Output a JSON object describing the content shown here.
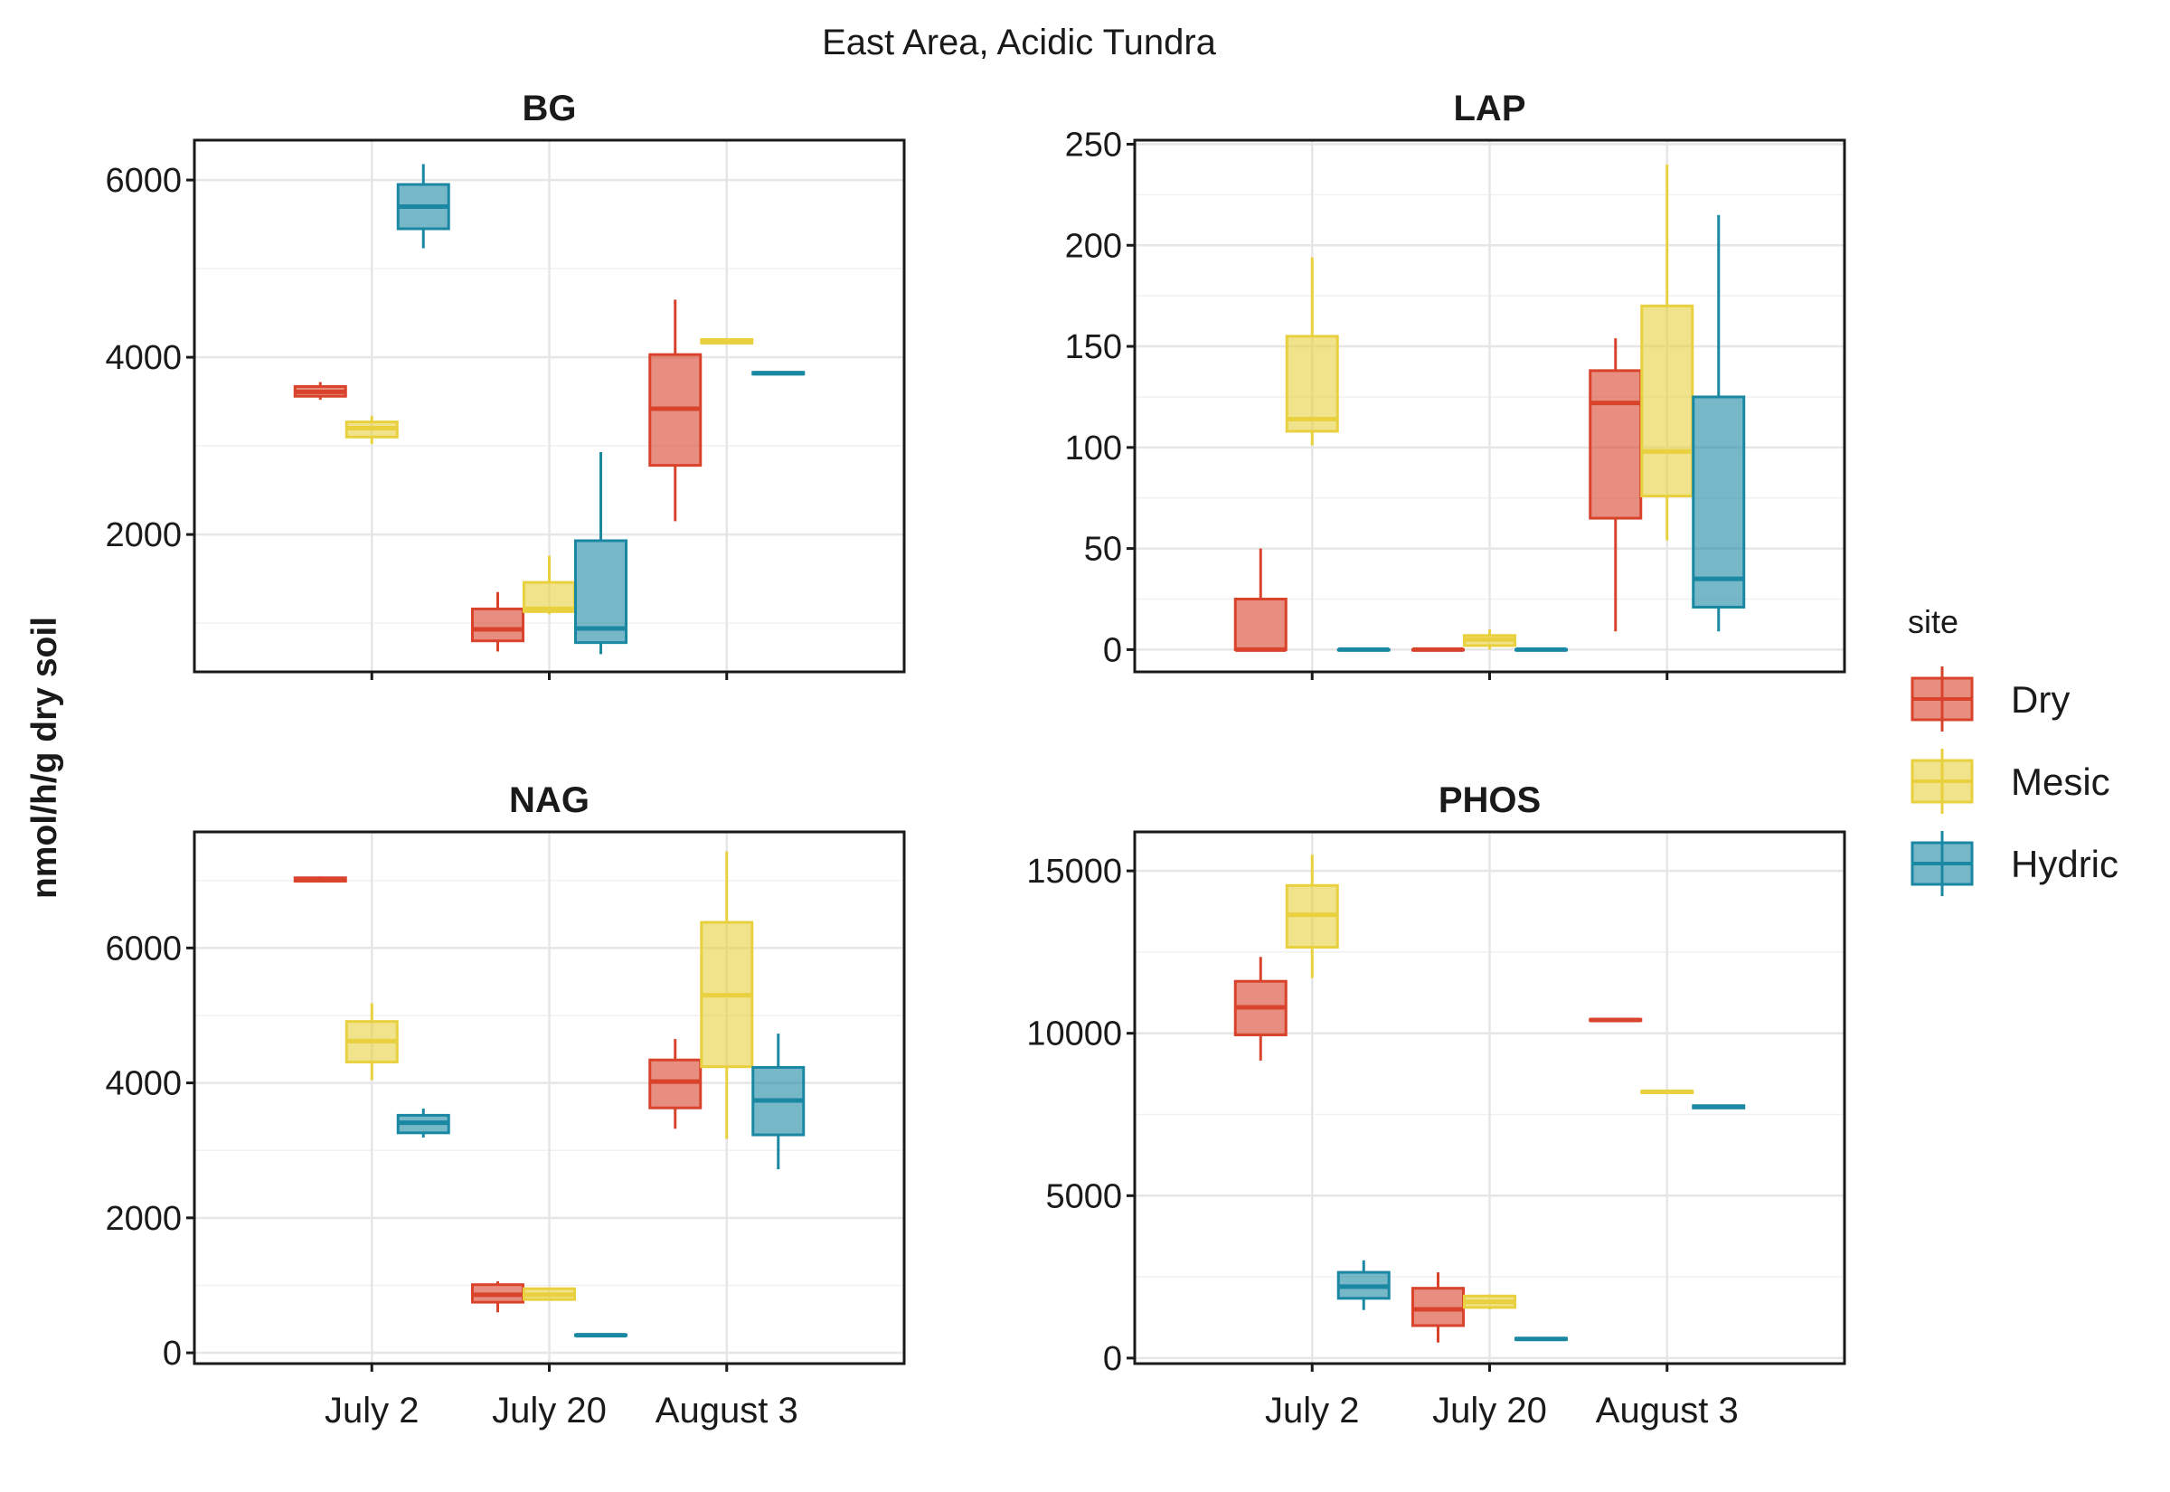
{
  "figure": {
    "suptitle": "East Area, Acidic Tundra",
    "ylabel": "nmol/h/g dry soil",
    "legend_title": "site"
  },
  "colors": {
    "Dry": "#d9432b",
    "Mesic": "#e8d03e",
    "Hydric": "#1a87a3"
  },
  "chart_data": [
    {
      "type": "box",
      "title": "BG",
      "categories": [
        "July 2",
        "July 20",
        "August 3"
      ],
      "ylim": [
        450,
        6450
      ],
      "yticks": [
        2000,
        4000,
        6000
      ],
      "tick_labels": [
        "2000",
        "4000",
        "6000"
      ],
      "show_x_labels": false,
      "series": [
        {
          "name": "Dry",
          "boxes": [
            {
              "min": 3520,
              "q1": 3560,
              "median": 3610,
              "q3": 3670,
              "max": 3720
            },
            {
              "min": 680,
              "q1": 800,
              "median": 930,
              "q3": 1160,
              "max": 1350
            },
            {
              "min": 2150,
              "q1": 2780,
              "median": 3420,
              "q3": 4030,
              "max": 4650
            }
          ]
        },
        {
          "name": "Mesic",
          "boxes": [
            {
              "min": 3020,
              "q1": 3100,
              "median": 3200,
              "q3": 3270,
              "max": 3340
            },
            {
              "min": 1100,
              "q1": 1130,
              "median": 1160,
              "q3": 1460,
              "max": 1760
            },
            {
              "min": 4150,
              "q1": 4160,
              "median": 4180,
              "q3": 4200,
              "max": 4210
            }
          ]
        },
        {
          "name": "Hydric",
          "boxes": [
            {
              "min": 5230,
              "q1": 5450,
              "median": 5700,
              "q3": 5950,
              "max": 6180
            },
            {
              "min": 650,
              "q1": 780,
              "median": 940,
              "q3": 1930,
              "max": 2930
            },
            {
              "min": 3800,
              "q1": 3810,
              "median": 3820,
              "q3": 3830,
              "max": 3840
            }
          ]
        }
      ]
    },
    {
      "type": "box",
      "title": "LAP",
      "categories": [
        "July 2",
        "July 20",
        "August 3"
      ],
      "ylim": [
        -11,
        252
      ],
      "yticks": [
        0,
        50,
        100,
        150,
        200,
        250
      ],
      "tick_labels": [
        "0",
        "50",
        "100",
        "150",
        "200",
        "250"
      ],
      "show_x_labels": false,
      "series": [
        {
          "name": "Dry",
          "boxes": [
            {
              "min": 0,
              "q1": 0,
              "median": 0,
              "q3": 25,
              "max": 50
            },
            {
              "min": 0,
              "q1": 0,
              "median": 0,
              "q3": 0,
              "max": 0
            },
            {
              "min": 9,
              "q1": 65,
              "median": 122,
              "q3": 138,
              "max": 154
            }
          ]
        },
        {
          "name": "Mesic",
          "boxes": [
            {
              "min": 101,
              "q1": 108,
              "median": 114,
              "q3": 155,
              "max": 194
            },
            {
              "min": 0,
              "q1": 2,
              "median": 5,
              "q3": 7,
              "max": 10
            },
            {
              "min": 54,
              "q1": 76,
              "median": 98,
              "q3": 170,
              "max": 240
            }
          ]
        },
        {
          "name": "Hydric",
          "boxes": [
            {
              "min": 0,
              "q1": 0,
              "median": 0,
              "q3": 0,
              "max": 0
            },
            {
              "min": 0,
              "q1": 0,
              "median": 0,
              "q3": 0,
              "max": 0
            },
            {
              "min": 9,
              "q1": 21,
              "median": 35,
              "q3": 125,
              "max": 215
            }
          ]
        }
      ]
    },
    {
      "type": "box",
      "title": "NAG",
      "categories": [
        "July 2",
        "July 20",
        "August 3"
      ],
      "ylim": [
        -160,
        7720
      ],
      "yticks": [
        0,
        2000,
        4000,
        6000
      ],
      "tick_labels": [
        "0",
        "2000",
        "4000",
        "6000"
      ],
      "show_x_labels": true,
      "series": [
        {
          "name": "Dry",
          "boxes": [
            {
              "min": 6980,
              "q1": 6990,
              "median": 7020,
              "q3": 7040,
              "max": 7060
            },
            {
              "min": 600,
              "q1": 750,
              "median": 860,
              "q3": 1010,
              "max": 1060
            },
            {
              "min": 3320,
              "q1": 3630,
              "median": 4020,
              "q3": 4340,
              "max": 4650
            }
          ]
        },
        {
          "name": "Mesic",
          "boxes": [
            {
              "min": 4040,
              "q1": 4310,
              "median": 4620,
              "q3": 4910,
              "max": 5180
            },
            {
              "min": 780,
              "q1": 790,
              "median": 860,
              "q3": 950,
              "max": 960
            },
            {
              "min": 3170,
              "q1": 4240,
              "median": 5300,
              "q3": 6380,
              "max": 7430
            }
          ]
        },
        {
          "name": "Hydric",
          "boxes": [
            {
              "min": 3190,
              "q1": 3260,
              "median": 3410,
              "q3": 3520,
              "max": 3620
            },
            {
              "min": 250,
              "q1": 255,
              "median": 260,
              "q3": 265,
              "max": 270
            },
            {
              "min": 2720,
              "q1": 3230,
              "median": 3740,
              "q3": 4230,
              "max": 4730
            }
          ]
        }
      ]
    },
    {
      "type": "box",
      "title": "PHOS",
      "categories": [
        "July 2",
        "July 20",
        "August 3"
      ],
      "ylim": [
        -170,
        16200
      ],
      "yticks": [
        0,
        5000,
        10000,
        15000
      ],
      "tick_labels": [
        "0",
        "5000",
        "10000",
        "15000"
      ],
      "show_x_labels": true,
      "series": [
        {
          "name": "Dry",
          "boxes": [
            {
              "min": 9160,
              "q1": 9950,
              "median": 10800,
              "q3": 11600,
              "max": 12350
            },
            {
              "min": 480,
              "q1": 1000,
              "median": 1500,
              "q3": 2150,
              "max": 2640
            },
            {
              "min": 10380,
              "q1": 10390,
              "median": 10410,
              "q3": 10430,
              "max": 10440
            }
          ]
        },
        {
          "name": "Mesic",
          "boxes": [
            {
              "min": 11700,
              "q1": 12650,
              "median": 13650,
              "q3": 14550,
              "max": 15500
            },
            {
              "min": 1500,
              "q1": 1560,
              "median": 1730,
              "q3": 1910,
              "max": 1960
            },
            {
              "min": 8160,
              "q1": 8170,
              "median": 8200,
              "q3": 8220,
              "max": 8230
            }
          ]
        },
        {
          "name": "Hydric",
          "boxes": [
            {
              "min": 1480,
              "q1": 1840,
              "median": 2200,
              "q3": 2640,
              "max": 3010
            },
            {
              "min": 560,
              "q1": 570,
              "median": 590,
              "q3": 610,
              "max": 620
            },
            {
              "min": 7680,
              "q1": 7700,
              "median": 7740,
              "q3": 7770,
              "max": 7790
            }
          ]
        }
      ]
    }
  ]
}
